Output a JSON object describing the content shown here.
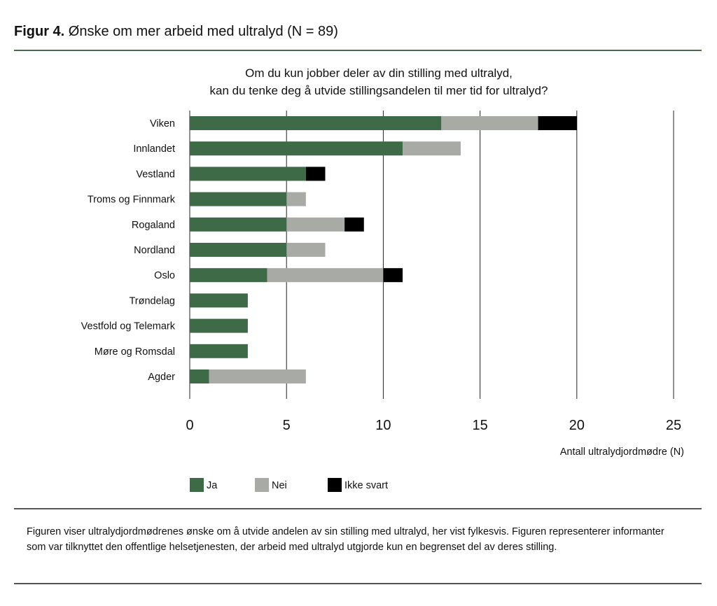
{
  "figure": {
    "label": "Figur 4.",
    "title": "Ønske om mer arbeid med ultralyd (N = 89)",
    "caption": "Figuren viser ultralydjordmødrenes ønske om å utvide andelen av sin stilling med ultralyd, her vist fylkesvis. Figuren representerer informanter som var tilknyttet den offentlige helsetjenesten, der arbeid med ultralyd utgjorde kun en begrenset del av deres stilling."
  },
  "chart_data": {
    "type": "bar",
    "orientation": "horizontal",
    "stacked": true,
    "title_lines": [
      "Om du kun jobber deler av din stilling med ultralyd,",
      "kan du tenke deg å utvide stillingsandelen til mer tid for ultralyd?"
    ],
    "xlabel": "Antall ultralydjordmødre (N)",
    "ylabel": "",
    "xlim": [
      0,
      25
    ],
    "xticks": [
      0,
      5,
      10,
      15,
      20,
      25
    ],
    "grid": true,
    "legend_position": "bottom",
    "categories": [
      "Viken",
      "Innlandet",
      "Vestland",
      "Troms og Finnmark",
      "Rogaland",
      "Nordland",
      "Oslo",
      "Trøndelag",
      "Vestfold og Telemark",
      "Møre og Romsdal",
      "Agder"
    ],
    "series": [
      {
        "name": "Ja",
        "color": "#3f6a48",
        "values": [
          13,
          11,
          6,
          5,
          5,
          5,
          4,
          3,
          3,
          3,
          1
        ]
      },
      {
        "name": "Nei",
        "color": "#a8aba5",
        "values": [
          5,
          3,
          0,
          1,
          3,
          2,
          6,
          0,
          0,
          0,
          5
        ]
      },
      {
        "name": "Ikke svart",
        "color": "#000000",
        "values": [
          2,
          0,
          1,
          0,
          1,
          0,
          1,
          0,
          0,
          0,
          0
        ]
      }
    ]
  }
}
